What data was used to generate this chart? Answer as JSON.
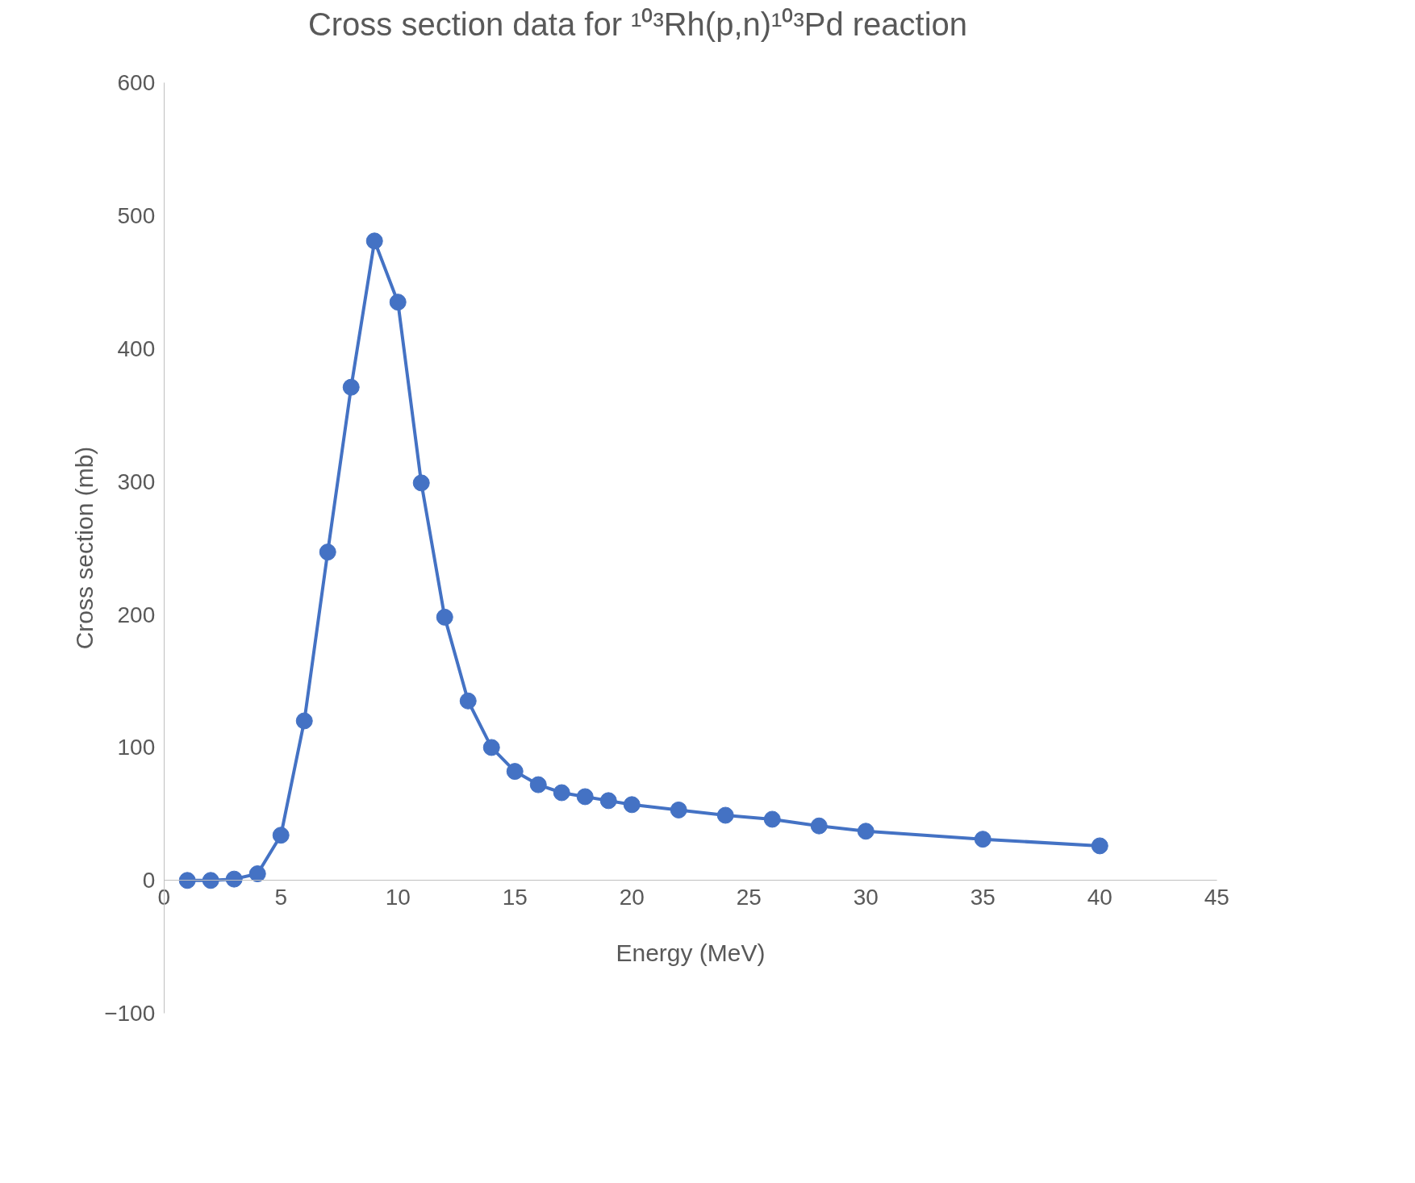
{
  "chart_data": {
    "type": "line",
    "title": "Cross section data for ¹⁰³Rh(p,n)¹⁰³Pd reaction",
    "xlabel": "Energy (MeV)",
    "ylabel": "Cross section (mb)",
    "xlim": [
      0,
      45
    ],
    "xticks": [
      0,
      5,
      10,
      15,
      20,
      25,
      30,
      35,
      40,
      45
    ],
    "ylim": [
      -100,
      600
    ],
    "yticks": [
      -100,
      0,
      100,
      200,
      300,
      400,
      500,
      600
    ],
    "grid": false,
    "marker": "circle",
    "line_style": "solid",
    "series": [
      {
        "color": "#4472c4",
        "x": [
          1,
          2,
          3,
          4,
          5,
          6,
          7,
          8,
          9,
          10,
          11,
          12,
          13,
          14,
          15,
          16,
          17,
          18,
          19,
          20,
          22,
          24,
          26,
          28,
          30,
          35,
          40
        ],
        "values": [
          0,
          0,
          1,
          5,
          34,
          120,
          247,
          371,
          481,
          435,
          299,
          198,
          135,
          100,
          82,
          72,
          66,
          63,
          60,
          57,
          53,
          49,
          46,
          41,
          37,
          31,
          26
        ]
      }
    ]
  }
}
